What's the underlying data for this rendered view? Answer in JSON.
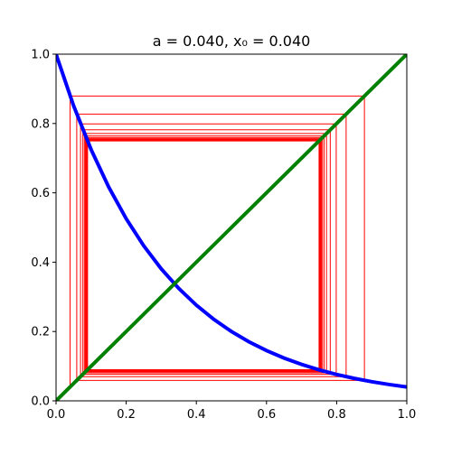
{
  "chart_data": {
    "type": "cobweb",
    "title": "a = 0.040, x₀ = 0.040",
    "xlim": [
      0,
      1
    ],
    "ylim": [
      0,
      1
    ],
    "xticks": [
      {
        "value": 0,
        "label": "0.0"
      },
      {
        "value": 0.2,
        "label": "0.2"
      },
      {
        "value": 0.4,
        "label": "0.4"
      },
      {
        "value": 0.6,
        "label": "0.6"
      },
      {
        "value": 0.8,
        "label": "0.8"
      },
      {
        "value": 1,
        "label": "1.0"
      }
    ],
    "yticks": [
      {
        "value": 0,
        "label": "0.0"
      },
      {
        "value": 0.2,
        "label": "0.2"
      },
      {
        "value": 0.4,
        "label": "0.4"
      },
      {
        "value": 0.6,
        "label": "0.6"
      },
      {
        "value": 0.8,
        "label": "0.8"
      },
      {
        "value": 1,
        "label": "1.0"
      }
    ],
    "series": [
      {
        "color": "blue",
        "x": [
          0,
          0.05,
          0.1,
          0.15,
          0.2,
          0.25,
          0.3,
          0.35,
          0.4,
          0.45,
          0.5,
          0.55,
          0.6,
          0.65,
          0.7,
          0.75,
          0.8,
          0.85,
          0.9,
          0.95,
          1
        ],
        "values": [
          1,
          0.8513,
          0.7248,
          0.617,
          0.5253,
          0.4472,
          0.3807,
          0.3241,
          0.2759,
          0.2349,
          0.2,
          0.1703,
          0.145,
          0.1234,
          0.1051,
          0.0894,
          0.0761,
          0.0648,
          0.0552,
          0.047,
          0.04
        ]
      },
      {
        "color": "green",
        "x": [
          0,
          1
        ],
        "values": [
          0,
          1
        ]
      }
    ],
    "cobweb_color": "red",
    "iterates": [
      0.04,
      0.87919,
      0.05901,
      0.827,
      0.06981,
      0.79876,
      0.07646,
      0.7818,
      0.08075,
      0.77108,
      0.08358,
      0.76409,
      0.08549,
      0.75941,
      0.08679,
      0.75624,
      0.08768,
      0.75408,
      0.08829,
      0.7526,
      0.08871,
      0.75158,
      0.089,
      0.75088,
      0.0892,
      0.75039,
      0.08934,
      0.75006,
      0.08944,
      0.74982,
      0.08951
    ]
  }
}
